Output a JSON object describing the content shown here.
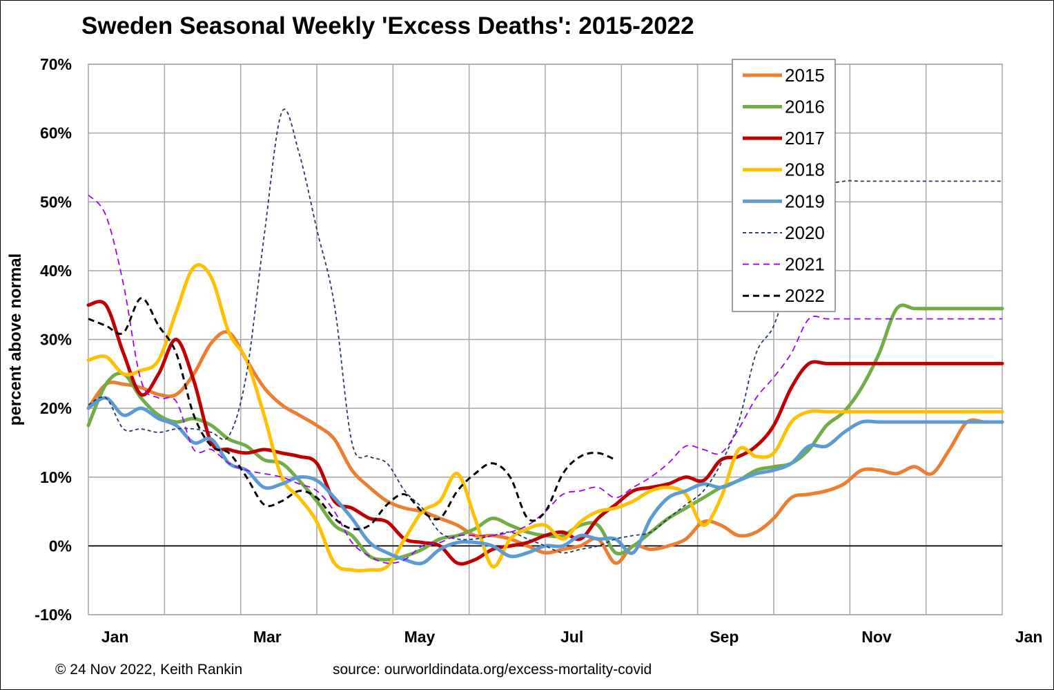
{
  "chart_data": {
    "type": "line",
    "title": "Sweden Seasonal Weekly 'Excess Deaths': 2015-2022",
    "ylabel": "percent above normal",
    "xlabel": "",
    "x_unit": "week of year",
    "xlim": [
      1,
      53
    ],
    "ylim": [
      -10,
      70
    ],
    "yticks": [
      "-10%",
      "0%",
      "10%",
      "20%",
      "30%",
      "40%",
      "50%",
      "60%",
      "70%"
    ],
    "xticks": [
      "Jan",
      "Mar",
      "May",
      "Jul",
      "Sep",
      "Nov",
      "Jan"
    ],
    "grid": true,
    "legend_position": "top-right",
    "series": [
      {
        "name": "2015",
        "color": "#ED7D31",
        "style": "solid",
        "width": 5,
        "x": [
          1,
          2,
          3,
          4,
          5,
          6,
          7,
          8,
          9,
          10,
          11,
          12,
          13,
          14,
          15,
          16,
          17,
          18,
          19,
          20,
          21,
          22,
          23,
          24,
          25,
          26,
          27,
          28,
          29,
          30,
          31,
          32,
          33,
          34,
          35,
          36,
          37,
          38,
          39,
          40,
          41,
          42,
          43,
          44,
          45,
          46,
          47,
          48,
          49,
          50,
          51,
          52,
          53
        ],
        "y": [
          20,
          23.5,
          23.5,
          23,
          22,
          22,
          25,
          29.5,
          31,
          27,
          23,
          20.5,
          19,
          17.5,
          15.5,
          11,
          8.5,
          6.5,
          5.5,
          5,
          4,
          3,
          1.5,
          1.5,
          1,
          0,
          -1,
          -0.5,
          0,
          1,
          -2.5,
          0,
          -0.5,
          0,
          1,
          3.5,
          3,
          1.5,
          2,
          4,
          7,
          7.5,
          8,
          9,
          11,
          11,
          10.5,
          11.5,
          10.5,
          14,
          18,
          18,
          18
        ]
      },
      {
        "name": "2016",
        "color": "#70AD47",
        "style": "solid",
        "width": 5,
        "x": [
          1,
          2,
          3,
          4,
          5,
          6,
          7,
          8,
          9,
          10,
          11,
          12,
          13,
          14,
          15,
          16,
          17,
          18,
          19,
          20,
          21,
          22,
          23,
          24,
          25,
          26,
          27,
          28,
          29,
          30,
          31,
          32,
          33,
          34,
          35,
          36,
          37,
          38,
          39,
          40,
          41,
          42,
          43,
          44,
          45,
          46,
          47,
          48,
          49,
          50,
          51,
          52,
          53
        ],
        "y": [
          17.5,
          23.5,
          25,
          21.5,
          19,
          18,
          18.5,
          17.5,
          15.5,
          14.5,
          12.5,
          12,
          9.5,
          6.5,
          3,
          1.5,
          -1.5,
          -2,
          -1.5,
          -0.5,
          1,
          1.5,
          2.5,
          4,
          3,
          2,
          1.5,
          1.5,
          3,
          3,
          -1,
          0,
          2,
          4,
          5.5,
          7,
          8.5,
          9.5,
          11,
          11.5,
          12,
          14,
          17.5,
          19.5,
          23,
          28,
          34.5,
          34.5,
          34.5,
          34.5,
          34.5,
          34.5,
          34.5
        ]
      },
      {
        "name": "2017",
        "color": "#C00000",
        "style": "solid",
        "width": 5,
        "x": [
          1,
          2,
          3,
          4,
          5,
          6,
          7,
          8,
          9,
          10,
          11,
          12,
          13,
          14,
          15,
          16,
          17,
          18,
          19,
          20,
          21,
          22,
          23,
          24,
          25,
          26,
          27,
          28,
          29,
          30,
          31,
          32,
          33,
          34,
          35,
          36,
          37,
          38,
          39,
          40,
          41,
          42,
          43,
          44,
          45,
          46,
          47,
          48,
          49,
          50,
          51,
          52,
          53
        ],
        "y": [
          35,
          35,
          28,
          22,
          25,
          30,
          24,
          15,
          14,
          13.5,
          14,
          13.5,
          13,
          12,
          6.5,
          5.5,
          4,
          3.5,
          1,
          0.5,
          0,
          -2.5,
          -2,
          -0.5,
          0,
          0.5,
          1.5,
          2,
          1,
          4,
          6,
          8,
          8.5,
          9,
          10,
          9.5,
          12.5,
          13,
          14.5,
          17.5,
          23,
          26.5,
          26.5,
          26.5,
          26.5,
          26.5,
          26.5,
          26.5,
          26.5,
          26.5,
          26.5,
          26.5,
          26.5
        ]
      },
      {
        "name": "2018",
        "color": "#FFC000",
        "style": "solid",
        "width": 5,
        "x": [
          1,
          2,
          3,
          4,
          5,
          6,
          7,
          8,
          9,
          10,
          11,
          12,
          13,
          14,
          15,
          16,
          17,
          18,
          19,
          20,
          21,
          22,
          23,
          24,
          25,
          26,
          27,
          28,
          29,
          30,
          31,
          32,
          33,
          34,
          35,
          36,
          37,
          38,
          39,
          40,
          41,
          42,
          43,
          44,
          45,
          46,
          47,
          48,
          49,
          50,
          51,
          52,
          53
        ],
        "y": [
          27,
          27.5,
          25,
          25.5,
          27,
          34,
          40.5,
          39,
          31,
          27,
          19,
          10,
          7,
          3.5,
          -2.5,
          -3.5,
          -3.5,
          -3,
          1,
          5,
          6.5,
          10.5,
          4,
          -3,
          1,
          2.5,
          3,
          1,
          3.5,
          5,
          5.5,
          6.5,
          8,
          8.5,
          7.5,
          3,
          7,
          14,
          13,
          13.5,
          18,
          19.5,
          19.5,
          19.5,
          19.5,
          19.5,
          19.5,
          19.5,
          19.5,
          19.5,
          19.5,
          19.5,
          19.5
        ]
      },
      {
        "name": "2019",
        "color": "#5B9BD5",
        "style": "solid",
        "width": 5,
        "x": [
          1,
          2,
          3,
          4,
          5,
          6,
          7,
          8,
          9,
          10,
          11,
          12,
          13,
          14,
          15,
          16,
          17,
          18,
          19,
          20,
          21,
          22,
          23,
          24,
          25,
          26,
          27,
          28,
          29,
          30,
          31,
          32,
          33,
          34,
          35,
          36,
          37,
          38,
          39,
          40,
          41,
          42,
          43,
          44,
          45,
          46,
          47,
          48,
          49,
          50,
          51,
          52,
          53
        ],
        "y": [
          20,
          21.5,
          19,
          20,
          18.5,
          17.5,
          15,
          15.5,
          12,
          11,
          8.5,
          9,
          10,
          9.5,
          7,
          4,
          0.5,
          -1,
          -2,
          -2.5,
          -0.5,
          0.5,
          0.5,
          0,
          -1.5,
          -1,
          0,
          0,
          1.5,
          1,
          1,
          -1,
          4,
          7,
          8,
          9,
          8.5,
          9.5,
          10.5,
          11,
          12,
          14.5,
          14.5,
          16.5,
          18,
          18,
          18,
          18,
          18,
          18,
          18,
          18,
          18
        ]
      },
      {
        "name": "2020",
        "color": "#1F3864",
        "style": "dashed-fine",
        "width": 1.8,
        "x": [
          1,
          2,
          3,
          4,
          5,
          6,
          7,
          8,
          9,
          10,
          11,
          12,
          13,
          14,
          15,
          16,
          17,
          18,
          19,
          20,
          21,
          22,
          23,
          24,
          25,
          26,
          27,
          28,
          29,
          30,
          31,
          32,
          33,
          34,
          35,
          36,
          37,
          38,
          39,
          40,
          41,
          42,
          43,
          44,
          45,
          46,
          47,
          48,
          49,
          50,
          51,
          52,
          53
        ],
        "y": [
          20.5,
          21.5,
          17,
          17,
          16.5,
          17,
          17,
          16.5,
          16,
          25,
          45,
          63,
          57,
          46,
          35,
          15,
          13,
          12,
          8,
          5.5,
          2,
          1,
          1,
          1.5,
          2,
          1,
          0,
          -1,
          -0.5,
          0,
          1,
          1.5,
          2,
          4,
          6,
          8,
          12,
          18,
          28,
          32,
          40,
          47,
          52,
          53,
          53,
          53,
          53,
          53,
          53,
          53,
          53,
          53,
          53
        ]
      },
      {
        "name": "2021",
        "color": "#9900FF",
        "style": "dashed",
        "width": 1.8,
        "x": [
          1,
          2,
          3,
          4,
          5,
          6,
          7,
          8,
          9,
          10,
          11,
          12,
          13,
          14,
          15,
          16,
          17,
          18,
          19,
          20,
          21,
          22,
          23,
          24,
          25,
          26,
          27,
          28,
          29,
          30,
          31,
          32,
          33,
          34,
          35,
          36,
          37,
          38,
          39,
          40,
          41,
          42,
          43,
          44,
          45,
          46,
          47,
          48,
          49,
          50,
          51,
          52,
          53
        ],
        "y": [
          51,
          48,
          38,
          24,
          21.5,
          21,
          14,
          14,
          12,
          11,
          10.5,
          10,
          9,
          8,
          5,
          0.5,
          -1.5,
          -2.5,
          -2,
          0,
          0.5,
          1.5,
          1.5,
          1.5,
          2,
          3,
          5,
          7.5,
          8,
          8.5,
          7,
          8.5,
          10,
          12,
          14.5,
          14,
          13.5,
          17,
          21.5,
          24.5,
          28,
          33,
          33,
          33,
          33,
          33,
          33,
          33,
          33,
          33,
          33,
          33,
          33
        ]
      },
      {
        "name": "2022",
        "color": "#000000",
        "style": "dashed",
        "width": 3,
        "x": [
          1,
          2,
          3,
          4,
          5,
          6,
          7,
          8,
          9,
          10,
          11,
          12,
          13,
          14,
          15,
          16,
          17,
          18,
          19,
          20,
          21,
          22,
          23,
          24,
          25,
          26,
          27,
          28,
          29,
          30,
          31,
          32,
          33,
          34,
          35,
          36,
          37,
          38,
          39,
          40,
          41,
          42,
          43,
          44,
          45,
          46,
          47,
          48,
          49,
          50,
          51,
          52,
          53
        ],
        "y": [
          33,
          32,
          31,
          36,
          32,
          28,
          19,
          14.5,
          13.5,
          10,
          6,
          6.5,
          8,
          7,
          4,
          2.5,
          3,
          6,
          7.5,
          5,
          4,
          8,
          10.5,
          12,
          10,
          4,
          5,
          10.5,
          13,
          13.5,
          12.5,
          null,
          null,
          null,
          null,
          null,
          null,
          null,
          null,
          null,
          null,
          null,
          null,
          null,
          null,
          null,
          null,
          null,
          null,
          null,
          null,
          null,
          null
        ]
      }
    ]
  },
  "footer": {
    "copyright": "© 24 Nov 2022, Keith Rankin",
    "source": "source: ourworldindata.org/excess-mortality-covid"
  }
}
